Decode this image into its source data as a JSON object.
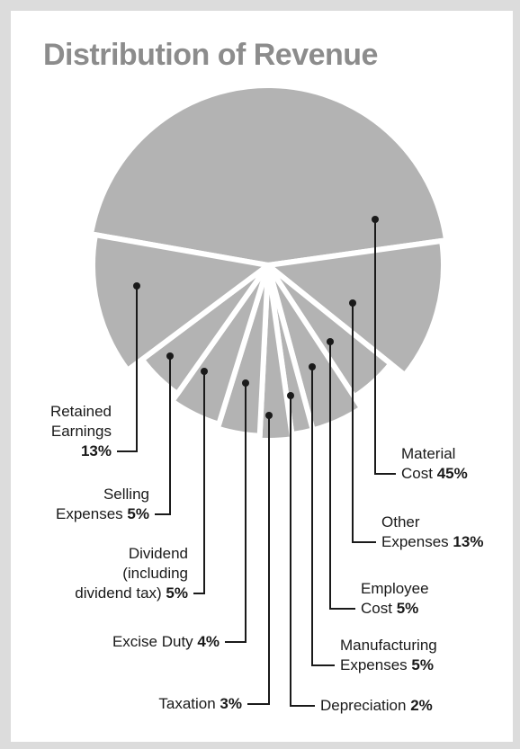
{
  "chart_data": {
    "type": "pie",
    "title": "Distribution of Revenue",
    "categories": [
      "Material Cost",
      "Other Expenses",
      "Employee Cost",
      "Manufacturing Expenses",
      "Depreciation",
      "Taxation",
      "Excise Duty",
      "Dividend (including dividend tax)",
      "Selling Expenses",
      "Retained Earnings"
    ],
    "values": [
      45,
      13,
      5,
      5,
      2,
      3,
      4,
      5,
      5,
      13
    ],
    "value_labels": [
      "45%",
      "13%",
      "5%",
      "5%",
      "2%",
      "3%",
      "4%",
      "5%",
      "5%",
      "13%"
    ],
    "color": "#b3b3b3"
  }
}
